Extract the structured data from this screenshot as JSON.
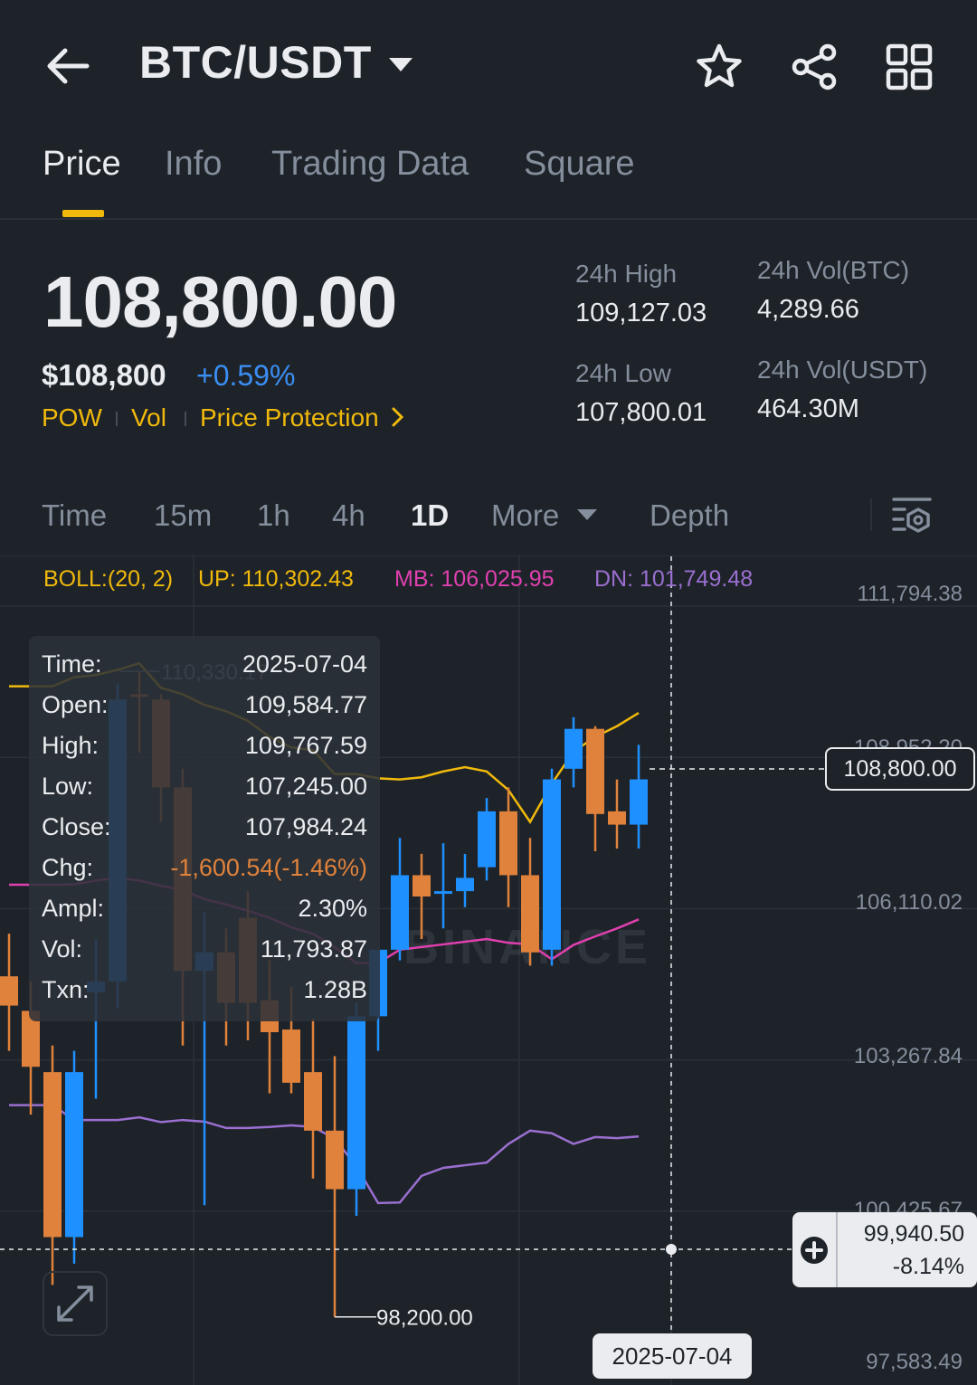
{
  "header": {
    "title": "BTC/USDT"
  },
  "tabs": [
    {
      "label": "Price",
      "active": true
    },
    {
      "label": "Info",
      "active": false
    },
    {
      "label": "Trading Data",
      "active": false
    },
    {
      "label": "Square",
      "active": false
    }
  ],
  "price": {
    "last": "108,800.00",
    "usd": "$108,800",
    "change_pct": "+0.59%",
    "tags": [
      "POW",
      "Vol",
      "Price Protection"
    ]
  },
  "stats": {
    "high_label": "24h High",
    "high": "109,127.03",
    "low_label": "24h Low",
    "low": "107,800.01",
    "vol_btc_label": "24h Vol(BTC)",
    "vol_btc": "4,289.66",
    "vol_usdt_label": "24h Vol(USDT)",
    "vol_usdt": "464.30M"
  },
  "intervals": {
    "items": [
      "Time",
      "15m",
      "1h",
      "4h",
      "1D",
      "More",
      "Depth"
    ],
    "active": "1D"
  },
  "boll": {
    "params": "BOLL:(20, 2)",
    "up": "UP: 110,302.43",
    "mb": "MB: 106,025.95",
    "dn": "DN: 101,749.48"
  },
  "tooltip": {
    "rows": [
      {
        "label": "Time:",
        "value": "2025-07-04"
      },
      {
        "label": "Open:",
        "value": "109,584.77"
      },
      {
        "label": "High:",
        "value": "109,767.59"
      },
      {
        "label": "Low:",
        "value": "107,245.00"
      },
      {
        "label": "Close:",
        "value": "107,984.24"
      },
      {
        "label": "Chg:",
        "value": "-1,600.54(-1.46%)"
      },
      {
        "label": "Ampl:",
        "value": "2.30%"
      },
      {
        "label": "Vol:",
        "value": "11,793.87"
      },
      {
        "label": "Txn:",
        "value": "1.28B"
      }
    ]
  },
  "crosshair": {
    "price": "99,940.50",
    "pct": "-8.14%",
    "date": "2025-07-04"
  },
  "last_price_badge": "108,800.00",
  "watermark": "BINANCE",
  "colors": {
    "up": "#1e90ff",
    "down": "#e0823b",
    "accent": "#f0b90b",
    "boll_up": "#f0b90b",
    "boll_mb": "#e040b0",
    "boll_dn": "#9a6fd0"
  },
  "chart_data": {
    "type": "candlestick",
    "y_axis_ticks": [
      "111,794.38",
      "108,952.20",
      "106,110.02",
      "103,267.84",
      "100,425.67",
      "97,583.49"
    ],
    "ylim": [
      97583.49,
      111794.38
    ],
    "max_label": "110,330.17",
    "min_label": "98,200.00",
    "candles": [
      {
        "o": 104600,
        "h": 105400,
        "c": 104050,
        "l": 103200
      },
      {
        "o": 103950,
        "h": 104500,
        "c": 102900,
        "l": 102000
      },
      {
        "o": 102800,
        "h": 103300,
        "c": 99700,
        "l": 98800
      },
      {
        "o": 99700,
        "h": 103200,
        "c": 102800,
        "l": 99200
      },
      {
        "o": 104300,
        "h": 105300,
        "c": 104500,
        "l": 102300
      },
      {
        "o": 104500,
        "h": 110100,
        "c": 109800,
        "l": 104000
      },
      {
        "o": 109900,
        "h": 110330.17,
        "c": 109850,
        "l": 108800
      },
      {
        "o": 109800,
        "h": 109900,
        "c": 108150,
        "l": 107500
      },
      {
        "o": 108150,
        "h": 108500,
        "c": 104700,
        "l": 103300
      },
      {
        "o": 104700,
        "h": 105800,
        "c": 105050,
        "l": 100300
      },
      {
        "o": 105050,
        "h": 105500,
        "c": 104100,
        "l": 103300
      },
      {
        "o": 105700,
        "h": 106200,
        "c": 104100,
        "l": 103400
      },
      {
        "o": 104150,
        "h": 104900,
        "c": 103550,
        "l": 102400
      },
      {
        "o": 103600,
        "h": 104400,
        "c": 102600,
        "l": 102400
      },
      {
        "o": 102800,
        "h": 103800,
        "c": 101700,
        "l": 100800
      },
      {
        "o": 101700,
        "h": 103100,
        "c": 100600,
        "l": 98200
      },
      {
        "o": 100600,
        "h": 104100,
        "c": 103850,
        "l": 100100
      },
      {
        "o": 103850,
        "h": 105100,
        "c": 105100,
        "l": 103200
      },
      {
        "o": 105100,
        "h": 107200,
        "c": 106500,
        "l": 104900
      },
      {
        "o": 106500,
        "h": 106900,
        "c": 106100,
        "l": 105300
      },
      {
        "o": 106150,
        "h": 107100,
        "c": 106200,
        "l": 105500
      },
      {
        "o": 106200,
        "h": 106900,
        "c": 106450,
        "l": 105900
      },
      {
        "o": 106650,
        "h": 107950,
        "c": 107700,
        "l": 106400
      },
      {
        "o": 107700,
        "h": 108150,
        "c": 106500,
        "l": 105900
      },
      {
        "o": 106500,
        "h": 107200,
        "c": 105050,
        "l": 104800
      },
      {
        "o": 105100,
        "h": 108500,
        "c": 108300,
        "l": 104800
      },
      {
        "o": 108500,
        "h": 109470,
        "c": 109250,
        "l": 108150
      },
      {
        "o": 109250,
        "h": 109300,
        "c": 107650,
        "l": 106950
      },
      {
        "o": 107700,
        "h": 108300,
        "c": 107450,
        "l": 107000
      },
      {
        "o": 107450,
        "h": 108950,
        "c": 108300,
        "l": 107000
      }
    ],
    "boll_up": [
      110050,
      110050,
      110050,
      110220,
      110260,
      110360,
      110480,
      110020,
      109900,
      109700,
      109580,
      109400,
      109100,
      108900,
      108850,
      108400,
      108400,
      108320,
      108300,
      108340,
      108450,
      108530,
      108450,
      108100,
      107500,
      108220,
      108820,
      109100,
      109300,
      109550
    ],
    "boll_mb": [
      106320,
      106320,
      106320,
      106330,
      106400,
      106450,
      106400,
      106300,
      106220,
      106050,
      105950,
      105830,
      105700,
      105520,
      105400,
      105150,
      104850,
      104850,
      105100,
      105150,
      105200,
      105250,
      105300,
      105230,
      105200,
      104920,
      105190,
      105350,
      105500,
      105670
    ],
    "boll_dn": [
      102180,
      102180,
      102180,
      101900,
      101900,
      101900,
      101950,
      101860,
      101900,
      101870,
      101750,
      101750,
      101770,
      101800,
      101770,
      101550,
      101030,
      100340,
      100350,
      100850,
      101000,
      101050,
      101100,
      101450,
      101700,
      101650,
      101450,
      101580,
      101560,
      101590
    ]
  }
}
